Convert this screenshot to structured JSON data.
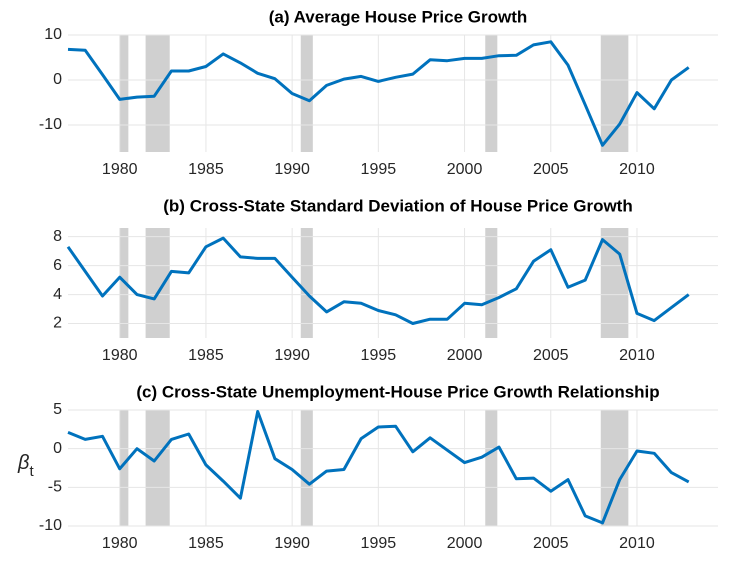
{
  "chart_data": [
    {
      "type": "line",
      "title": "(a) Average House Price Growth",
      "color": "#0072bd",
      "grid": true,
      "x": [
        1977,
        1978,
        1979,
        1980,
        1981,
        1982,
        1983,
        1984,
        1985,
        1986,
        1987,
        1988,
        1989,
        1990,
        1991,
        1992,
        1993,
        1994,
        1995,
        1996,
        1997,
        1998,
        1999,
        2000,
        2001,
        2002,
        2003,
        2004,
        2005,
        2006,
        2007,
        2008,
        2009,
        2010,
        2011,
        2012,
        2013
      ],
      "values": [
        6.8,
        6.6,
        1.2,
        -4.3,
        -3.8,
        -3.6,
        2.0,
        2.0,
        3.0,
        5.8,
        3.8,
        1.5,
        0.3,
        -3.0,
        -4.6,
        -1.2,
        0.2,
        0.8,
        -0.3,
        0.6,
        1.3,
        4.5,
        4.3,
        4.8,
        4.8,
        5.4,
        5.5,
        7.8,
        8.5,
        3.3,
        -5.5,
        -14.5,
        -9.8,
        -2.8,
        -6.4,
        0.0,
        2.8
      ],
      "shaded_regions": [
        [
          1980,
          1980.5
        ],
        [
          1981.5,
          1982.9
        ],
        [
          1990.5,
          1991.2
        ],
        [
          2001.2,
          2001.9
        ],
        [
          2007.9,
          2009.5
        ]
      ],
      "xlim": [
        1977,
        2014.7
      ],
      "xticks": [
        1980,
        1985,
        1990,
        1995,
        2000,
        2005,
        2010
      ],
      "ylim": [
        -16,
        10
      ],
      "yticks": [
        -10,
        0,
        10
      ]
    },
    {
      "type": "line",
      "title": "(b) Cross-State Standard Deviation of House Price Growth",
      "color": "#0072bd",
      "grid": true,
      "x": [
        1977,
        1978,
        1979,
        1980,
        1981,
        1982,
        1983,
        1984,
        1985,
        1986,
        1987,
        1988,
        1989,
        1990,
        1991,
        1992,
        1993,
        1994,
        1995,
        1996,
        1997,
        1998,
        1999,
        2000,
        2001,
        2002,
        2003,
        2004,
        2005,
        2006,
        2007,
        2008,
        2009,
        2010,
        2011,
        2012,
        2013
      ],
      "values": [
        7.3,
        5.6,
        3.9,
        5.2,
        4.0,
        3.7,
        5.6,
        5.5,
        7.3,
        7.9,
        6.6,
        6.5,
        6.5,
        5.2,
        3.9,
        2.8,
        3.5,
        3.4,
        2.9,
        2.6,
        2.0,
        2.3,
        2.3,
        3.4,
        3.3,
        3.8,
        4.4,
        6.3,
        7.1,
        4.5,
        5.0,
        7.8,
        6.8,
        2.7,
        2.2,
        3.1,
        4.0
      ],
      "shaded_regions": [
        [
          1980,
          1980.5
        ],
        [
          1981.5,
          1982.9
        ],
        [
          1990.5,
          1991.2
        ],
        [
          2001.2,
          2001.9
        ],
        [
          2007.9,
          2009.5
        ]
      ],
      "xlim": [
        1977,
        2014.7
      ],
      "xticks": [
        1980,
        1985,
        1990,
        1995,
        2000,
        2005,
        2010
      ],
      "ylim": [
        1,
        8.6
      ],
      "yticks": [
        2,
        4,
        6,
        8
      ]
    },
    {
      "type": "line",
      "title": "(c) Cross-State Unemployment-House Price Growth Relationship",
      "color": "#0072bd",
      "grid": true,
      "ylabel": "β",
      "ylabel_subscript": "t",
      "x": [
        1977,
        1978,
        1979,
        1980,
        1981,
        1982,
        1983,
        1984,
        1985,
        1986,
        1987,
        1988,
        1989,
        1990,
        1991,
        1992,
        1993,
        1994,
        1995,
        1996,
        1997,
        1998,
        1999,
        2000,
        2001,
        2002,
        2003,
        2004,
        2005,
        2006,
        2007,
        2008,
        2009,
        2010,
        2011,
        2012,
        2013
      ],
      "values": [
        2.1,
        1.2,
        1.6,
        -2.6,
        0.0,
        -1.6,
        1.2,
        1.9,
        -2.1,
        -4.2,
        -6.4,
        4.8,
        -1.3,
        -2.7,
        -4.6,
        -2.9,
        -2.7,
        1.3,
        2.8,
        2.9,
        -0.4,
        1.4,
        -0.2,
        -1.8,
        -1.1,
        0.2,
        -3.9,
        -3.8,
        -5.5,
        -4.0,
        -8.7,
        -9.6,
        -4.0,
        -0.3,
        -0.6,
        -3.1,
        -4.3
      ],
      "shaded_regions": [
        [
          1980,
          1980.5
        ],
        [
          1981.5,
          1982.9
        ],
        [
          1990.5,
          1991.2
        ],
        [
          2001.2,
          2001.9
        ],
        [
          2007.9,
          2009.5
        ]
      ],
      "xlim": [
        1977,
        2014.7
      ],
      "xticks": [
        1980,
        1985,
        1990,
        1995,
        2000,
        2005,
        2010
      ],
      "ylim": [
        -10,
        5
      ],
      "yticks": [
        -10,
        -5,
        0,
        5
      ]
    }
  ]
}
